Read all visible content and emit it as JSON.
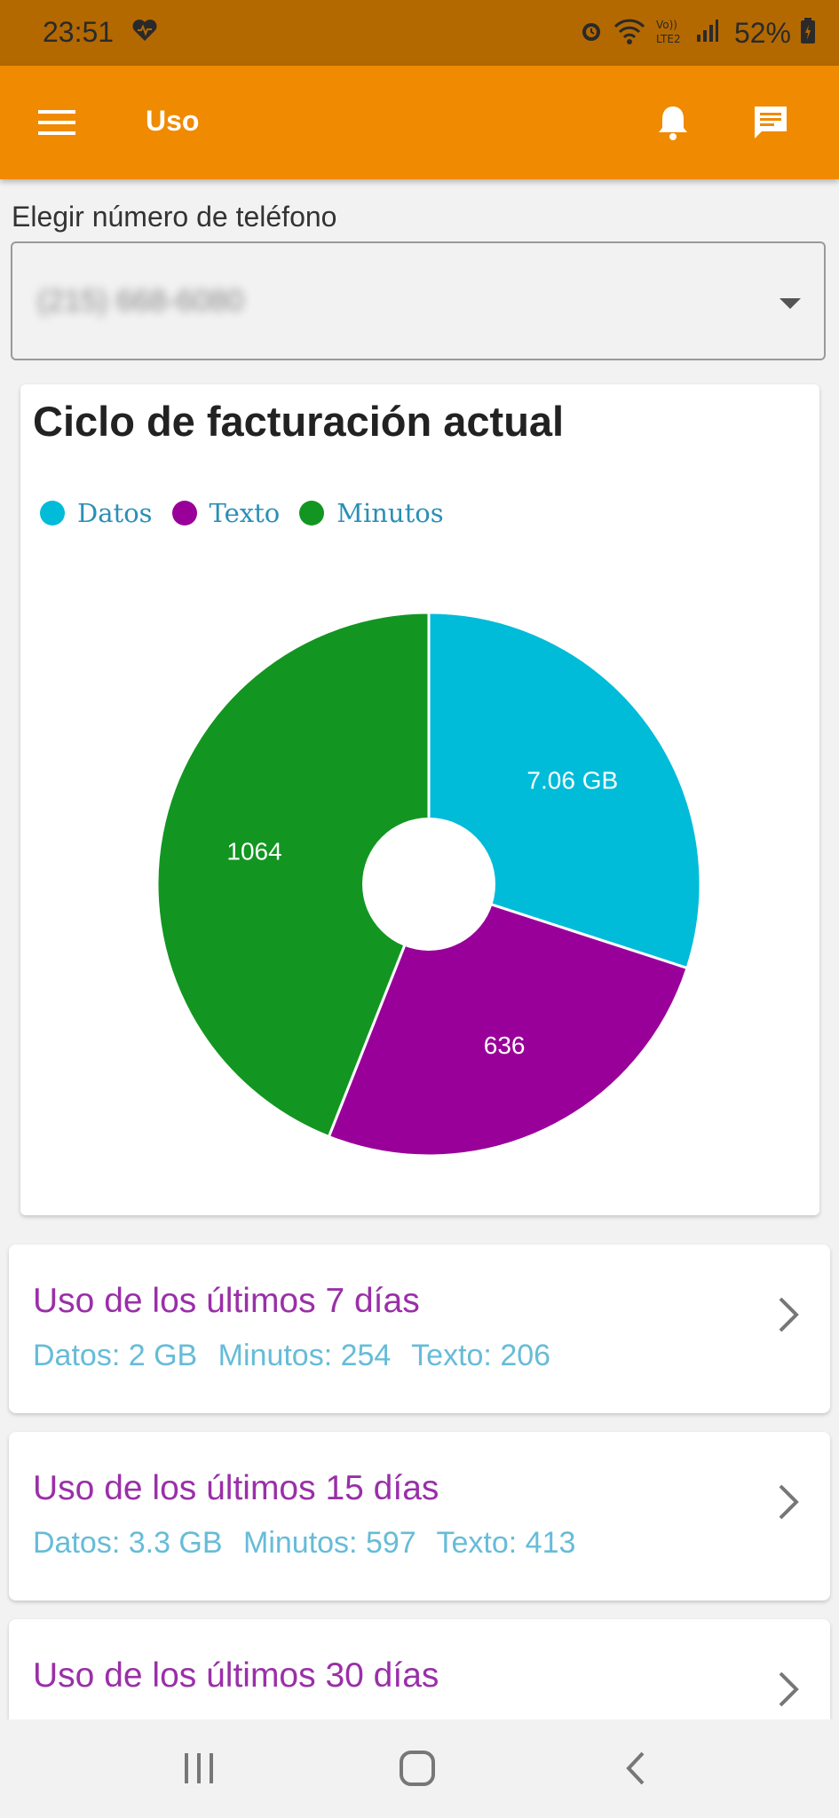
{
  "status_bar": {
    "time": "23:51",
    "battery": "52%",
    "icons": [
      "heart-icon",
      "alarm-icon",
      "wifi-icon",
      "volte-icon",
      "signal-icon",
      "battery-icon"
    ]
  },
  "app_bar": {
    "title": "Uso",
    "menu_icon": "menu-icon",
    "notifications_icon": "bell-icon",
    "messages_icon": "chat-icon",
    "color": "#f08a00"
  },
  "phone_select": {
    "label": "Elegir número de teléfono",
    "value": "(215) 668-6080"
  },
  "chart_card": {
    "title": "Ciclo de facturación actual"
  },
  "chart_data": {
    "type": "pie",
    "title": "Ciclo de facturación actual",
    "legend_position": "top-left",
    "donut": true,
    "series": [
      {
        "name": "Datos",
        "value": 7.06,
        "label": "7.06 GB",
        "color": "#00bcd8"
      },
      {
        "name": "Texto",
        "value": 636,
        "label": "636",
        "color": "#990099"
      },
      {
        "name": "Minutos",
        "value": 1064,
        "label": "1064",
        "color": "#129621"
      }
    ],
    "slice_fractions": [
      0.3,
      0.26,
      0.44
    ]
  },
  "usage_cards": [
    {
      "title": "Uso de los últimos 7 días",
      "datos": "Datos: 2 GB",
      "minutos": "Minutos: 254",
      "texto": "Texto: 206"
    },
    {
      "title": "Uso de los últimos 15 días",
      "datos": "Datos: 3.3 GB",
      "minutos": "Minutos: 597",
      "texto": "Texto: 413"
    },
    {
      "title": "Uso de los últimos 30 días"
    }
  ],
  "nav_bar": {
    "recents_icon": "recents-icon",
    "home_icon": "home-icon",
    "back_icon": "back-icon"
  }
}
